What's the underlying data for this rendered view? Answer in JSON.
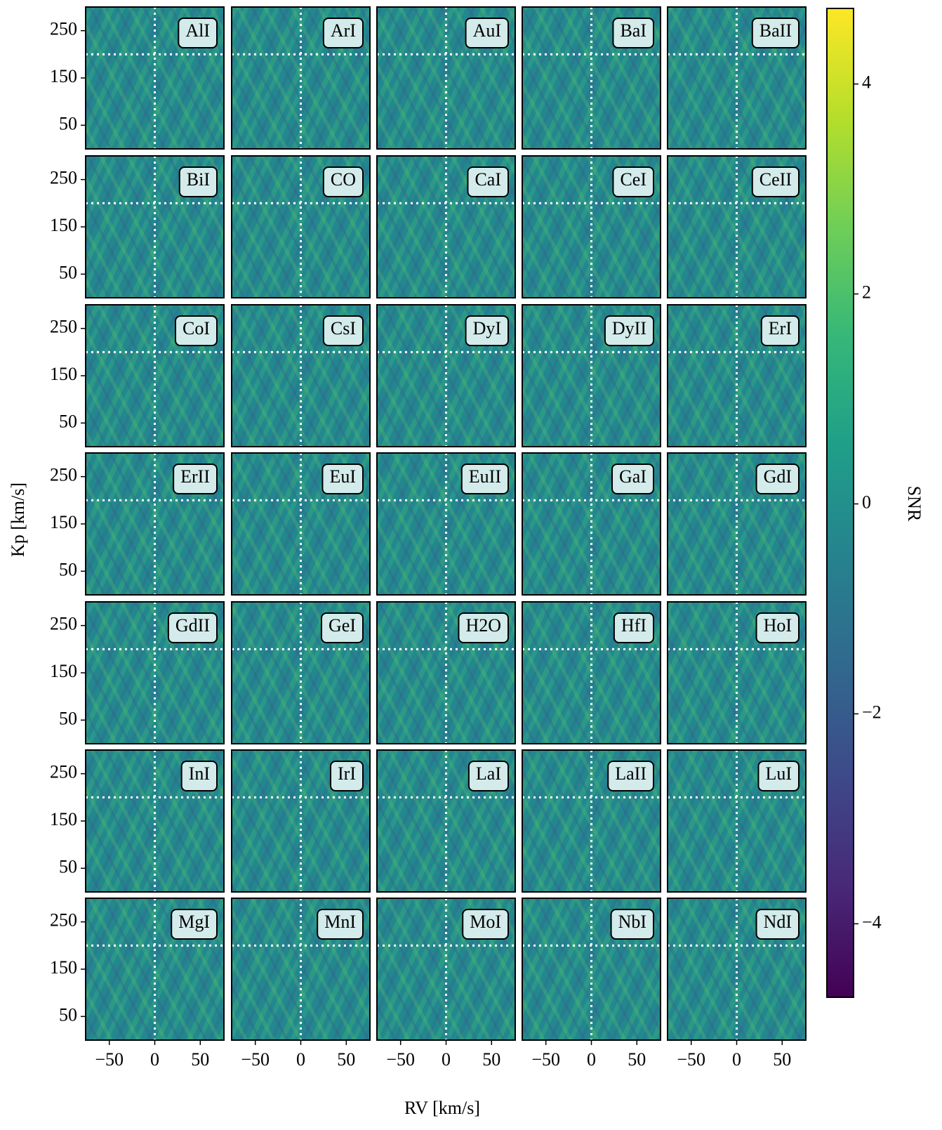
{
  "chart_data": {
    "type": "heatmap-grid",
    "panels": [
      "AlI",
      "ArI",
      "AuI",
      "BaI",
      "BaII",
      "BiI",
      "CO",
      "CaI",
      "CeI",
      "CeII",
      "CoI",
      "CsI",
      "DyI",
      "DyII",
      "ErI",
      "ErII",
      "EuI",
      "EuII",
      "GaI",
      "GdI",
      "GdII",
      "GeI",
      "H2O",
      "HfI",
      "HoI",
      "InI",
      "IrI",
      "LaI",
      "LaII",
      "LuI",
      "MgI",
      "MnI",
      "MoI",
      "NbI",
      "NdI"
    ],
    "columns": 5,
    "xlabel": "RV [km/s]",
    "ylabel": "Kp [km/s]",
    "xlim": [
      -76,
      76
    ],
    "ylim": [
      0,
      300
    ],
    "xticks": [
      {
        "value": -50,
        "label": "−50"
      },
      0,
      50
    ],
    "yticks": [
      50,
      150,
      250
    ],
    "reference_lines": {
      "x": 0,
      "y": 200
    },
    "colorbar": {
      "label": "SNR",
      "colormap": "viridis",
      "clim": [
        -4.7,
        4.72
      ],
      "ticks": [
        {
          "value": -4,
          "label": "−4"
        },
        {
          "value": -2,
          "label": "−2"
        },
        0,
        2,
        4
      ]
    }
  }
}
